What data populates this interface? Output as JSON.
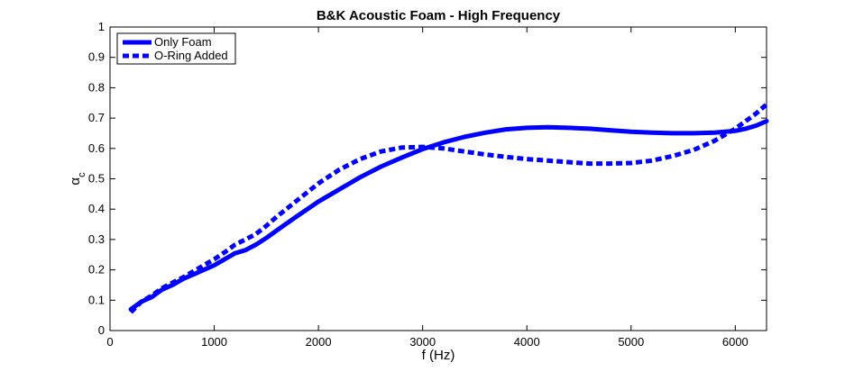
{
  "chart_data": {
    "type": "line",
    "title": "B&K Acoustic Foam - High Frequency",
    "xlabel": "f (Hz)",
    "ylabel_main": "α",
    "ylabel_sub": "c",
    "xlim": [
      0,
      6300
    ],
    "ylim": [
      0,
      1
    ],
    "xticks": [
      0,
      1000,
      2000,
      3000,
      4000,
      5000,
      6000
    ],
    "yticks": [
      0,
      0.1,
      0.2,
      0.3,
      0.4,
      0.5,
      0.6,
      0.7,
      0.8,
      0.9,
      1
    ],
    "grid": false,
    "legend_position": "top-left",
    "series": [
      {
        "name": "Only Foam",
        "style": "solid",
        "color": "#0000ff",
        "x": [
          200,
          300,
          400,
          500,
          600,
          700,
          800,
          900,
          1000,
          1100,
          1200,
          1300,
          1400,
          1500,
          1600,
          1800,
          2000,
          2200,
          2400,
          2600,
          2800,
          3000,
          3200,
          3400,
          3600,
          3800,
          4000,
          4200,
          4400,
          4600,
          4800,
          5000,
          5200,
          5400,
          5600,
          5800,
          6000,
          6100,
          6200,
          6300
        ],
        "y": [
          0.07,
          0.095,
          0.11,
          0.135,
          0.15,
          0.17,
          0.185,
          0.2,
          0.215,
          0.235,
          0.255,
          0.265,
          0.283,
          0.305,
          0.33,
          0.378,
          0.425,
          0.465,
          0.505,
          0.54,
          0.57,
          0.598,
          0.62,
          0.638,
          0.652,
          0.663,
          0.668,
          0.67,
          0.668,
          0.665,
          0.66,
          0.655,
          0.652,
          0.65,
          0.65,
          0.652,
          0.658,
          0.665,
          0.675,
          0.69
        ]
      },
      {
        "name": "O-Ring Added",
        "style": "dashed",
        "color": "#0000ff",
        "x": [
          200,
          300,
          400,
          500,
          600,
          700,
          800,
          900,
          1000,
          1100,
          1200,
          1300,
          1400,
          1500,
          1600,
          1800,
          2000,
          2200,
          2400,
          2600,
          2800,
          3000,
          3200,
          3400,
          3600,
          3800,
          4000,
          4200,
          4400,
          4600,
          4800,
          5000,
          5200,
          5400,
          5600,
          5800,
          6000,
          6100,
          6200,
          6300
        ],
        "y": [
          0.06,
          0.095,
          0.115,
          0.14,
          0.158,
          0.175,
          0.195,
          0.215,
          0.235,
          0.258,
          0.283,
          0.3,
          0.318,
          0.345,
          0.375,
          0.43,
          0.485,
          0.53,
          0.565,
          0.59,
          0.603,
          0.605,
          0.6,
          0.59,
          0.58,
          0.572,
          0.565,
          0.56,
          0.555,
          0.55,
          0.55,
          0.552,
          0.56,
          0.575,
          0.595,
          0.625,
          0.665,
          0.69,
          0.715,
          0.745
        ]
      }
    ]
  }
}
